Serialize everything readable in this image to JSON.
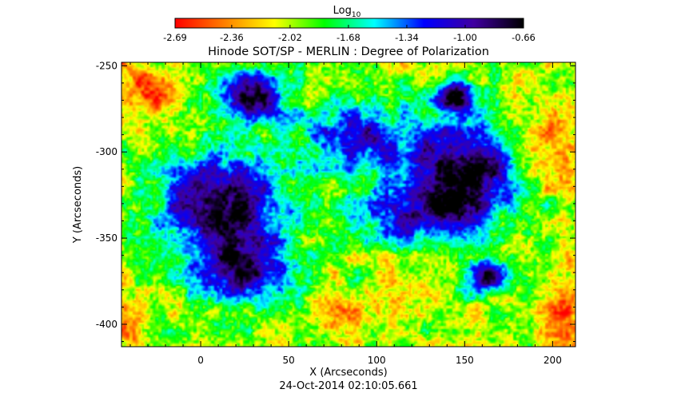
{
  "chart_data": {
    "type": "heatmap",
    "title": "Hinode SOT/SP - MERLIN : Degree of Polarization",
    "xlabel": "X (Arcseconds)",
    "ylabel": "Y (Arcseconds)",
    "timestamp": "24-Oct-2014 02:10:05.661",
    "xlim": [
      -45,
      213
    ],
    "ylim": [
      -413,
      -248
    ],
    "x_ticks": [
      0,
      50,
      100,
      150,
      200
    ],
    "x_tick_labels": [
      "0",
      "50",
      "100",
      "150",
      "200"
    ],
    "y_ticks": [
      -250,
      -300,
      -350,
      -400
    ],
    "y_tick_labels": [
      "-250",
      "-300",
      "-350",
      "-400"
    ],
    "colorbar": {
      "label_base": "Log",
      "label_sub": "10",
      "range": [
        -2.69,
        -0.66
      ],
      "ticks": [
        -2.69,
        -2.36,
        -2.02,
        -1.68,
        -1.34,
        -1.0,
        -0.66
      ],
      "tick_labels": [
        "-2.69",
        "-2.36",
        "-2.02",
        "-1.68",
        "-1.34",
        "-1.00",
        "-0.66"
      ],
      "colors": [
        "#ff0000",
        "#ff8000",
        "#ffff00",
        "#00ff00",
        "#00ffff",
        "#0000ff",
        "#4000a0",
        "#000000"
      ],
      "placement": "top"
    },
    "features": [
      {
        "name": "umbra",
        "x": 10,
        "y": -330,
        "rx": 36,
        "ry": 30,
        "value": -0.72
      },
      {
        "name": "umbra",
        "x": 25,
        "y": -368,
        "rx": 26,
        "ry": 20,
        "value": -0.82
      },
      {
        "name": "umbra",
        "x": 150,
        "y": -308,
        "rx": 32,
        "ry": 27,
        "value": -0.7
      },
      {
        "name": "umbra",
        "x": 30,
        "y": -268,
        "rx": 20,
        "ry": 17,
        "value": -0.78
      },
      {
        "name": "umbra",
        "x": 145,
        "y": -268,
        "rx": 12,
        "ry": 11,
        "value": -0.8
      },
      {
        "name": "umbra",
        "x": 162,
        "y": -372,
        "rx": 12,
        "ry": 10,
        "value": -0.82
      },
      {
        "name": "umbra",
        "x": 90,
        "y": -292,
        "rx": 32,
        "ry": 22,
        "value": -1.05
      },
      {
        "name": "umbra",
        "x": 125,
        "y": -335,
        "rx": 40,
        "ry": 18,
        "value": -1.05
      },
      {
        "name": "quiet",
        "x": -30,
        "y": -265,
        "rx": 14,
        "ry": 14,
        "value": -2.55
      },
      {
        "name": "quiet",
        "x": 200,
        "y": -300,
        "rx": 18,
        "ry": 20,
        "value": -2.45
      },
      {
        "name": "quiet",
        "x": 90,
        "y": -395,
        "rx": 24,
        "ry": 13,
        "value": -2.3
      },
      {
        "name": "quiet",
        "x": 205,
        "y": -390,
        "rx": 14,
        "ry": 22,
        "value": -2.45
      },
      {
        "name": "quiet",
        "x": -40,
        "y": -405,
        "rx": 10,
        "ry": 10,
        "value": -2.5
      }
    ]
  }
}
